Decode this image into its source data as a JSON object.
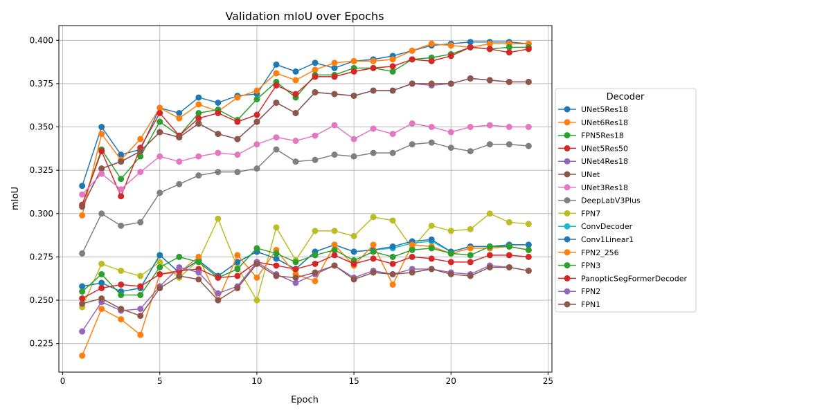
{
  "chart_data": {
    "type": "line",
    "title": "Validation mIoU over Epochs",
    "xlabel": "Epoch",
    "ylabel": "mIoU",
    "xlim": [
      -0.2,
      25.2
    ],
    "ylim": [
      0.2085,
      0.4085
    ],
    "xticks": [
      0,
      5,
      10,
      15,
      20,
      25
    ],
    "yticks": [
      0.225,
      0.25,
      0.275,
      0.3,
      0.325,
      0.35,
      0.375,
      0.4
    ],
    "grid": true,
    "legend_title": "Decoder",
    "legend_position": "right",
    "x": [
      1,
      2,
      3,
      4,
      5,
      6,
      7,
      8,
      9,
      10,
      11,
      12,
      13,
      14,
      15,
      16,
      17,
      18,
      19,
      20,
      21,
      22,
      23,
      24
    ],
    "series": [
      {
        "name": "UNet5Res18",
        "color": "#1f77b4",
        "values": [
          0.316,
          0.35,
          0.334,
          0.337,
          0.361,
          0.358,
          0.367,
          0.364,
          0.368,
          0.369,
          0.386,
          0.382,
          0.387,
          0.384,
          0.388,
          0.389,
          0.391,
          0.394,
          0.397,
          0.398,
          0.399,
          0.399,
          0.399,
          0.398
        ]
      },
      {
        "name": "UNet6Res18",
        "color": "#ff7f0e",
        "values": [
          0.299,
          0.346,
          0.331,
          0.343,
          0.361,
          0.355,
          0.363,
          0.359,
          0.367,
          0.371,
          0.381,
          0.377,
          0.383,
          0.387,
          0.388,
          0.388,
          0.389,
          0.394,
          0.398,
          0.397,
          0.396,
          0.398,
          0.398,
          0.398
        ]
      },
      {
        "name": "FPN5Res18",
        "color": "#2ca02c",
        "values": [
          0.305,
          0.337,
          0.32,
          0.333,
          0.353,
          0.345,
          0.358,
          0.36,
          0.354,
          0.366,
          0.376,
          0.367,
          0.38,
          0.38,
          0.384,
          0.384,
          0.382,
          0.389,
          0.39,
          0.392,
          0.396,
          0.395,
          0.396,
          0.396
        ]
      },
      {
        "name": "UNet5Res50",
        "color": "#d62728",
        "values": [
          0.305,
          0.336,
          0.31,
          0.338,
          0.358,
          0.345,
          0.355,
          0.358,
          0.353,
          0.357,
          0.374,
          0.369,
          0.379,
          0.379,
          0.382,
          0.384,
          0.385,
          0.389,
          0.388,
          0.391,
          0.396,
          0.395,
          0.393,
          0.395
        ]
      },
      {
        "name": "UNet4Res18",
        "color": "#9467bd",
        "values": [
          0.304,
          0.326,
          0.33,
          0.336,
          0.347,
          0.344,
          0.352,
          0.346,
          0.343,
          0.353,
          0.364,
          0.358,
          0.37,
          0.369,
          0.368,
          0.371,
          0.371,
          0.375,
          0.374,
          0.375,
          0.378,
          0.377,
          0.376,
          0.376
        ]
      },
      {
        "name": "UNet",
        "color": "#8c564b",
        "values": [
          0.304,
          0.326,
          0.33,
          0.336,
          0.347,
          0.344,
          0.352,
          0.346,
          0.343,
          0.353,
          0.364,
          0.358,
          0.37,
          0.369,
          0.368,
          0.371,
          0.371,
          0.375,
          0.375,
          0.375,
          0.378,
          0.377,
          0.376,
          0.376
        ]
      },
      {
        "name": "UNet3Res18",
        "color": "#e377c2",
        "values": [
          0.311,
          0.323,
          0.314,
          0.324,
          0.333,
          0.33,
          0.333,
          0.335,
          0.334,
          0.34,
          0.344,
          0.342,
          0.345,
          0.351,
          0.343,
          0.349,
          0.346,
          0.352,
          0.35,
          0.347,
          0.35,
          0.351,
          0.35,
          0.35
        ]
      },
      {
        "name": "DeepLabV3Plus",
        "color": "#7f7f7f",
        "values": [
          0.277,
          0.3,
          0.293,
          0.295,
          0.312,
          0.317,
          0.322,
          0.324,
          0.324,
          0.326,
          0.337,
          0.33,
          0.331,
          0.334,
          0.333,
          0.335,
          0.335,
          0.34,
          0.341,
          0.338,
          0.336,
          0.34,
          0.34,
          0.339
        ]
      },
      {
        "name": "FPN7",
        "color": "#bcbd22",
        "values": [
          0.246,
          0.271,
          0.267,
          0.264,
          0.272,
          0.263,
          0.273,
          0.297,
          0.269,
          0.25,
          0.292,
          0.273,
          0.29,
          0.29,
          0.287,
          0.298,
          0.296,
          0.28,
          0.293,
          0.29,
          0.291,
          0.3,
          0.295,
          0.294
        ]
      },
      {
        "name": "ConvDecoder",
        "color": "#17becf",
        "values": [
          0.258,
          0.26,
          0.255,
          0.257,
          0.276,
          0.266,
          0.273,
          0.264,
          0.272,
          0.278,
          0.274,
          0.268,
          0.278,
          0.282,
          0.278,
          0.279,
          0.28,
          0.283,
          0.284,
          0.278,
          0.281,
          0.281,
          0.282,
          0.282
        ]
      },
      {
        "name": "Conv1Linear1",
        "color": "#1f77b4",
        "values": [
          0.258,
          0.26,
          0.255,
          0.257,
          0.276,
          0.266,
          0.273,
          0.264,
          0.272,
          0.278,
          0.274,
          0.268,
          0.278,
          0.282,
          0.278,
          0.279,
          0.281,
          0.284,
          0.285,
          0.278,
          0.281,
          0.281,
          0.282,
          0.282
        ]
      },
      {
        "name": "FPN2_256",
        "color": "#ff7f0e",
        "values": [
          0.218,
          0.245,
          0.239,
          0.23,
          0.265,
          0.266,
          0.275,
          0.25,
          0.276,
          0.263,
          0.279,
          0.265,
          0.261,
          0.282,
          0.27,
          0.282,
          0.259,
          0.282,
          0.281,
          0.277,
          0.28,
          0.28,
          0.281,
          0.279
        ]
      },
      {
        "name": "FPN3",
        "color": "#2ca02c",
        "values": [
          0.255,
          0.265,
          0.253,
          0.253,
          0.269,
          0.275,
          0.272,
          0.263,
          0.268,
          0.28,
          0.277,
          0.272,
          0.276,
          0.279,
          0.273,
          0.278,
          0.275,
          0.279,
          0.28,
          0.277,
          0.276,
          0.281,
          0.281,
          0.279
        ]
      },
      {
        "name": "PanopticSegFormerDecoder",
        "color": "#d62728",
        "values": [
          0.251,
          0.257,
          0.259,
          0.258,
          0.265,
          0.267,
          0.268,
          0.263,
          0.264,
          0.272,
          0.27,
          0.268,
          0.271,
          0.276,
          0.271,
          0.274,
          0.271,
          0.275,
          0.274,
          0.272,
          0.272,
          0.276,
          0.276,
          0.275
        ]
      },
      {
        "name": "FPN2",
        "color": "#9467bd",
        "values": [
          0.232,
          0.249,
          0.244,
          0.245,
          0.258,
          0.269,
          0.266,
          0.254,
          0.258,
          0.272,
          0.265,
          0.26,
          0.265,
          0.27,
          0.263,
          0.267,
          0.265,
          0.268,
          0.268,
          0.266,
          0.265,
          0.27,
          0.269,
          0.267
        ]
      },
      {
        "name": "FPN1",
        "color": "#8c564b",
        "values": [
          0.248,
          0.251,
          0.245,
          0.241,
          0.257,
          0.264,
          0.262,
          0.25,
          0.257,
          0.271,
          0.264,
          0.263,
          0.266,
          0.27,
          0.262,
          0.266,
          0.265,
          0.266,
          0.268,
          0.265,
          0.264,
          0.269,
          0.269,
          0.267
        ]
      }
    ]
  }
}
